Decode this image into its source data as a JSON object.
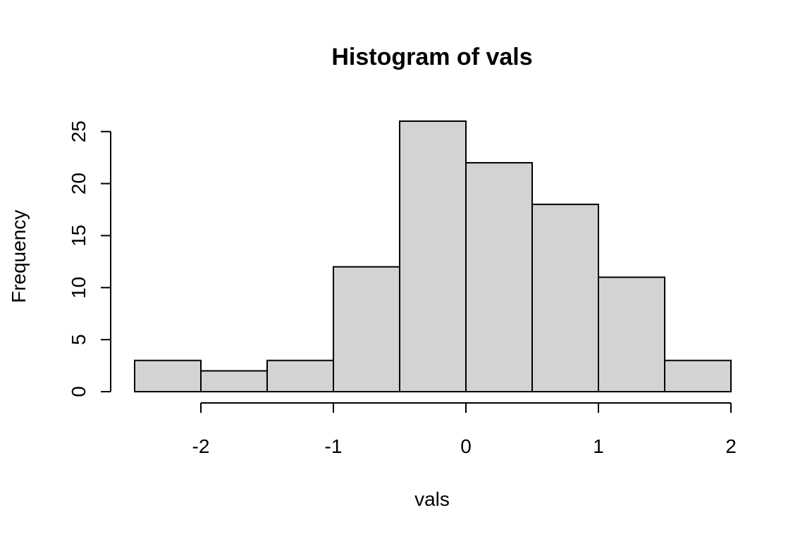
{
  "chart_data": {
    "type": "bar",
    "title": "Histogram of vals",
    "xlabel": "vals",
    "ylabel": "Frequency",
    "bin_edges": [
      -2.5,
      -2,
      -1.5,
      -1,
      -0.5,
      0,
      0.5,
      1,
      1.5,
      2
    ],
    "values": [
      3,
      2,
      3,
      12,
      26,
      22,
      18,
      11,
      3
    ],
    "xlim": [
      -2.5,
      2
    ],
    "ylim": [
      0,
      26
    ],
    "x_ticks": [
      -2,
      -1,
      0,
      1,
      2
    ],
    "x_tick_labels": [
      "-2",
      "-1",
      "0",
      "1",
      "2"
    ],
    "y_ticks": [
      0,
      5,
      10,
      15,
      20,
      25
    ],
    "y_tick_labels": [
      "0",
      "5",
      "10",
      "15",
      "20",
      "25"
    ],
    "bar_color": "#d3d3d3",
    "grid": false,
    "legend": "none"
  }
}
